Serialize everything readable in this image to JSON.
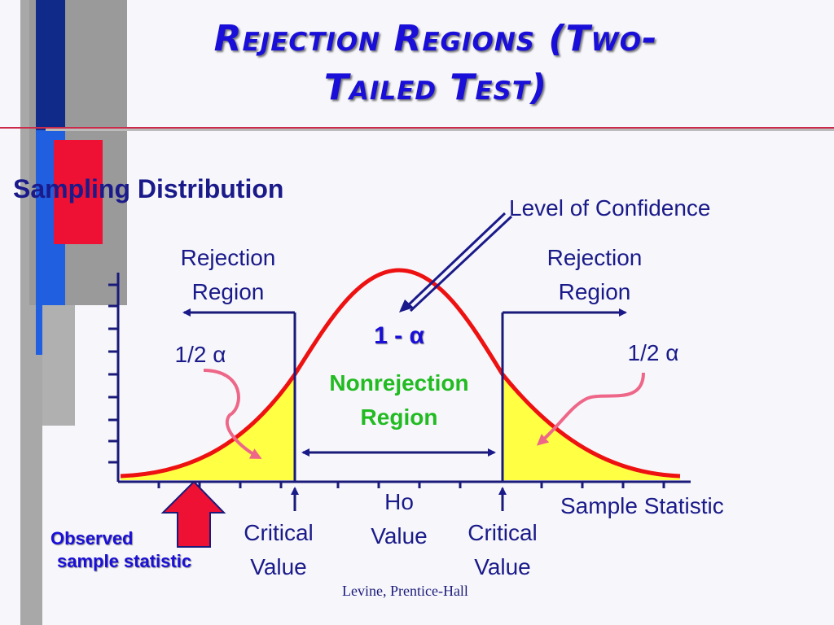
{
  "title_line1": "Rejection Regions (Two-",
  "title_line2": "Tailed Test)",
  "subtitle": "Sampling Distribution",
  "level_of_confidence": "Level of Confidence",
  "rejection_region_left": [
    "Rejection",
    "Region"
  ],
  "rejection_region_right": [
    "Rejection",
    "Region"
  ],
  "one_minus_alpha": "1 - α",
  "half_alpha_left": "1/2 α",
  "half_alpha_right": "1/2 α",
  "nonrejection_region": [
    "Nonrejection",
    "Region"
  ],
  "ho_value": [
    "Ho",
    "Value"
  ],
  "critical_value_left": [
    "Critical",
    "Value"
  ],
  "critical_value_right": [
    "Critical",
    "Value"
  ],
  "sample_statistic": "Sample Statistic",
  "observed": [
    "Observed",
    "sample statistic"
  ],
  "credit": "Levine, Prentice-Hall",
  "colors": {
    "title": "#1a0fd8",
    "curve": "#ee1111",
    "tail_fill": "#ffff44",
    "nonrejection_text": "#22bb22",
    "axis": "#1a1a7a",
    "observed_arrow": "#ee1133",
    "pink_arrow": "#ee6688"
  }
}
